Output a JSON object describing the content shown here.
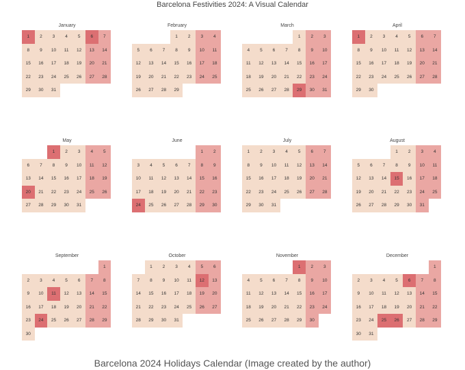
{
  "title": "Barcelona Festivities 2024: A Visual Calendar",
  "caption": "Barcelona 2024 Holidays Calendar (Image created by the author)",
  "colors": {
    "workday": "#f4dccb",
    "weekend": "#eaa7a3",
    "holiday": "#dc6f72",
    "background": "#ffffff"
  },
  "chart_data": {
    "type": "heatmap",
    "year": 2024,
    "week_starts": "Monday",
    "categories": [
      "workday",
      "weekend",
      "holiday"
    ],
    "months": [
      {
        "name": "January",
        "first_weekday": 0,
        "days": 31,
        "holidays": [
          1,
          6
        ]
      },
      {
        "name": "February",
        "first_weekday": 3,
        "days": 29,
        "holidays": []
      },
      {
        "name": "March",
        "first_weekday": 4,
        "days": 31,
        "holidays": [
          29
        ]
      },
      {
        "name": "April",
        "first_weekday": 0,
        "days": 30,
        "holidays": [
          1
        ]
      },
      {
        "name": "May",
        "first_weekday": 2,
        "days": 31,
        "holidays": [
          1,
          20
        ]
      },
      {
        "name": "June",
        "first_weekday": 5,
        "days": 30,
        "holidays": [
          24
        ]
      },
      {
        "name": "July",
        "first_weekday": 0,
        "days": 31,
        "holidays": []
      },
      {
        "name": "August",
        "first_weekday": 3,
        "days": 31,
        "holidays": [
          15
        ]
      },
      {
        "name": "September",
        "first_weekday": 6,
        "days": 30,
        "holidays": [
          11,
          24
        ]
      },
      {
        "name": "October",
        "first_weekday": 1,
        "days": 31,
        "holidays": [
          12
        ]
      },
      {
        "name": "November",
        "first_weekday": 4,
        "days": 30,
        "holidays": [
          1
        ]
      },
      {
        "name": "December",
        "first_weekday": 6,
        "days": 31,
        "holidays": [
          6,
          25,
          26
        ]
      }
    ]
  }
}
